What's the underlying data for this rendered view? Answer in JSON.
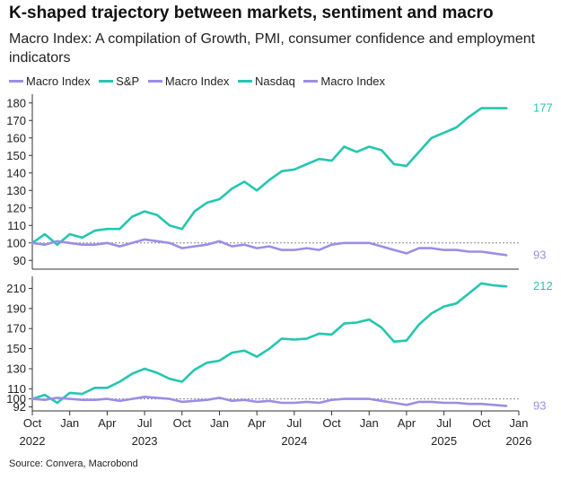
{
  "header": {
    "title": "K-shaped trajectory between markets, sentiment and macro",
    "subtitle": "Macro Index: A compilation of Growth, PMI, consumer confidence and employment indicators"
  },
  "legend": [
    {
      "label": "Macro Index",
      "color": "#9b8ee6"
    },
    {
      "label": "S&P",
      "color": "#24c6b0"
    },
    {
      "label": "Macro Index",
      "color": "#9b8ee6"
    },
    {
      "label": "Nasdaq",
      "color": "#24c6b0"
    },
    {
      "label": "Macro Index",
      "color": "#9b8ee6"
    }
  ],
  "source": "Source: Convera, Macrobond",
  "colors": {
    "market": "#24c6b0",
    "macro": "#9b8ee6",
    "reference": "#888888"
  },
  "chart_data": [
    {
      "type": "line",
      "panel": "top",
      "ylim": [
        85,
        185
      ],
      "yticks": [
        90,
        100,
        110,
        120,
        130,
        140,
        150,
        160,
        170,
        180
      ],
      "reference_line": 100,
      "series": [
        {
          "name": "S&P",
          "color": "#24c6b0",
          "end_label": "177",
          "x": [
            "2022-10",
            "2022-11",
            "2022-12",
            "2023-01",
            "2023-02",
            "2023-03",
            "2023-04",
            "2023-05",
            "2023-06",
            "2023-07",
            "2023-08",
            "2023-09",
            "2023-10",
            "2023-11",
            "2023-12",
            "2024-01",
            "2024-02",
            "2024-03",
            "2024-04",
            "2024-05",
            "2024-06",
            "2024-07",
            "2024-08",
            "2024-09",
            "2024-10",
            "2024-11",
            "2024-12",
            "2025-01",
            "2025-02",
            "2025-03",
            "2025-04",
            "2025-05",
            "2025-06",
            "2025-07",
            "2025-08",
            "2025-09",
            "2025-10",
            "2025-11",
            "2025-12"
          ],
          "values": [
            100,
            105,
            99,
            105,
            103,
            107,
            108,
            108,
            115,
            118,
            116,
            110,
            108,
            118,
            123,
            125,
            131,
            135,
            130,
            136,
            141,
            142,
            145,
            148,
            147,
            155,
            152,
            155,
            153,
            145,
            144,
            152,
            160,
            163,
            166,
            172,
            177,
            177,
            177
          ]
        },
        {
          "name": "Macro Index",
          "color": "#9b8ee6",
          "end_label": "93",
          "x": [
            "2022-10",
            "2022-11",
            "2022-12",
            "2023-01",
            "2023-02",
            "2023-03",
            "2023-04",
            "2023-05",
            "2023-06",
            "2023-07",
            "2023-08",
            "2023-09",
            "2023-10",
            "2023-11",
            "2023-12",
            "2024-01",
            "2024-02",
            "2024-03",
            "2024-04",
            "2024-05",
            "2024-06",
            "2024-07",
            "2024-08",
            "2024-09",
            "2024-10",
            "2024-11",
            "2024-12",
            "2025-01",
            "2025-02",
            "2025-03",
            "2025-04",
            "2025-05",
            "2025-06",
            "2025-07",
            "2025-08",
            "2025-09",
            "2025-10",
            "2025-11",
            "2025-12"
          ],
          "values": [
            100,
            99,
            101,
            100,
            99,
            99,
            100,
            98,
            100,
            102,
            101,
            100,
            97,
            98,
            99,
            101,
            98,
            99,
            97,
            98,
            96,
            96,
            97,
            96,
            99,
            100,
            100,
            100,
            98,
            96,
            94,
            97,
            97,
            96,
            96,
            95,
            95,
            94,
            93
          ]
        }
      ]
    },
    {
      "type": "line",
      "panel": "bottom",
      "ylim": [
        88,
        222
      ],
      "yticks": [
        92,
        110,
        130,
        150,
        170,
        190,
        210
      ],
      "extra_ticks": [
        100
      ],
      "reference_line": 100,
      "series": [
        {
          "name": "Nasdaq",
          "color": "#24c6b0",
          "end_label": "212",
          "x": [
            "2022-10",
            "2022-11",
            "2022-12",
            "2023-01",
            "2023-02",
            "2023-03",
            "2023-04",
            "2023-05",
            "2023-06",
            "2023-07",
            "2023-08",
            "2023-09",
            "2023-10",
            "2023-11",
            "2023-12",
            "2024-01",
            "2024-02",
            "2024-03",
            "2024-04",
            "2024-05",
            "2024-06",
            "2024-07",
            "2024-08",
            "2024-09",
            "2024-10",
            "2024-11",
            "2024-12",
            "2025-01",
            "2025-02",
            "2025-03",
            "2025-04",
            "2025-05",
            "2025-06",
            "2025-07",
            "2025-08",
            "2025-09",
            "2025-10",
            "2025-11",
            "2025-12"
          ],
          "values": [
            100,
            104,
            96,
            106,
            105,
            111,
            111,
            117,
            125,
            130,
            126,
            120,
            117,
            129,
            136,
            138,
            146,
            148,
            142,
            150,
            160,
            159,
            160,
            165,
            164,
            175,
            176,
            179,
            171,
            157,
            158,
            174,
            185,
            192,
            195,
            205,
            215,
            213,
            212
          ]
        },
        {
          "name": "Macro Index",
          "color": "#9b8ee6",
          "end_label": "93",
          "x": [
            "2022-10",
            "2022-11",
            "2022-12",
            "2023-01",
            "2023-02",
            "2023-03",
            "2023-04",
            "2023-05",
            "2023-06",
            "2023-07",
            "2023-08",
            "2023-09",
            "2023-10",
            "2023-11",
            "2023-12",
            "2024-01",
            "2024-02",
            "2024-03",
            "2024-04",
            "2024-05",
            "2024-06",
            "2024-07",
            "2024-08",
            "2024-09",
            "2024-10",
            "2024-11",
            "2024-12",
            "2025-01",
            "2025-02",
            "2025-03",
            "2025-04",
            "2025-05",
            "2025-06",
            "2025-07",
            "2025-08",
            "2025-09",
            "2025-10",
            "2025-11",
            "2025-12"
          ],
          "values": [
            100,
            99,
            101,
            100,
            99,
            99,
            100,
            98,
            100,
            102,
            101,
            100,
            97,
            98,
            99,
            101,
            98,
            99,
            97,
            98,
            96,
            96,
            97,
            96,
            99,
            100,
            100,
            100,
            98,
            96,
            94,
            97,
            97,
            96,
            96,
            95,
            95,
            94,
            93
          ]
        }
      ]
    }
  ],
  "x_axis": {
    "month_labels": [
      {
        "date": "2022-10",
        "label": "Oct"
      },
      {
        "date": "2023-01",
        "label": "Jan"
      },
      {
        "date": "2023-04",
        "label": "Apr"
      },
      {
        "date": "2023-07",
        "label": "Jul"
      },
      {
        "date": "2023-10",
        "label": "Oct"
      },
      {
        "date": "2024-01",
        "label": "Jan"
      },
      {
        "date": "2024-04",
        "label": "Apr"
      },
      {
        "date": "2024-07",
        "label": "Jul"
      },
      {
        "date": "2024-10",
        "label": "Oct"
      },
      {
        "date": "2025-01",
        "label": "Jan"
      },
      {
        "date": "2025-04",
        "label": "Apr"
      },
      {
        "date": "2025-07",
        "label": "Jul"
      },
      {
        "date": "2025-10",
        "label": "Oct"
      },
      {
        "date": "2026-01",
        "label": "Jan"
      }
    ],
    "year_labels": [
      {
        "date": "2022-10",
        "label": "2022"
      },
      {
        "date": "2023-07",
        "label": "2023"
      },
      {
        "date": "2024-07",
        "label": "2024"
      },
      {
        "date": "2025-07",
        "label": "2025"
      },
      {
        "date": "2026-01",
        "label": "2026"
      }
    ]
  }
}
